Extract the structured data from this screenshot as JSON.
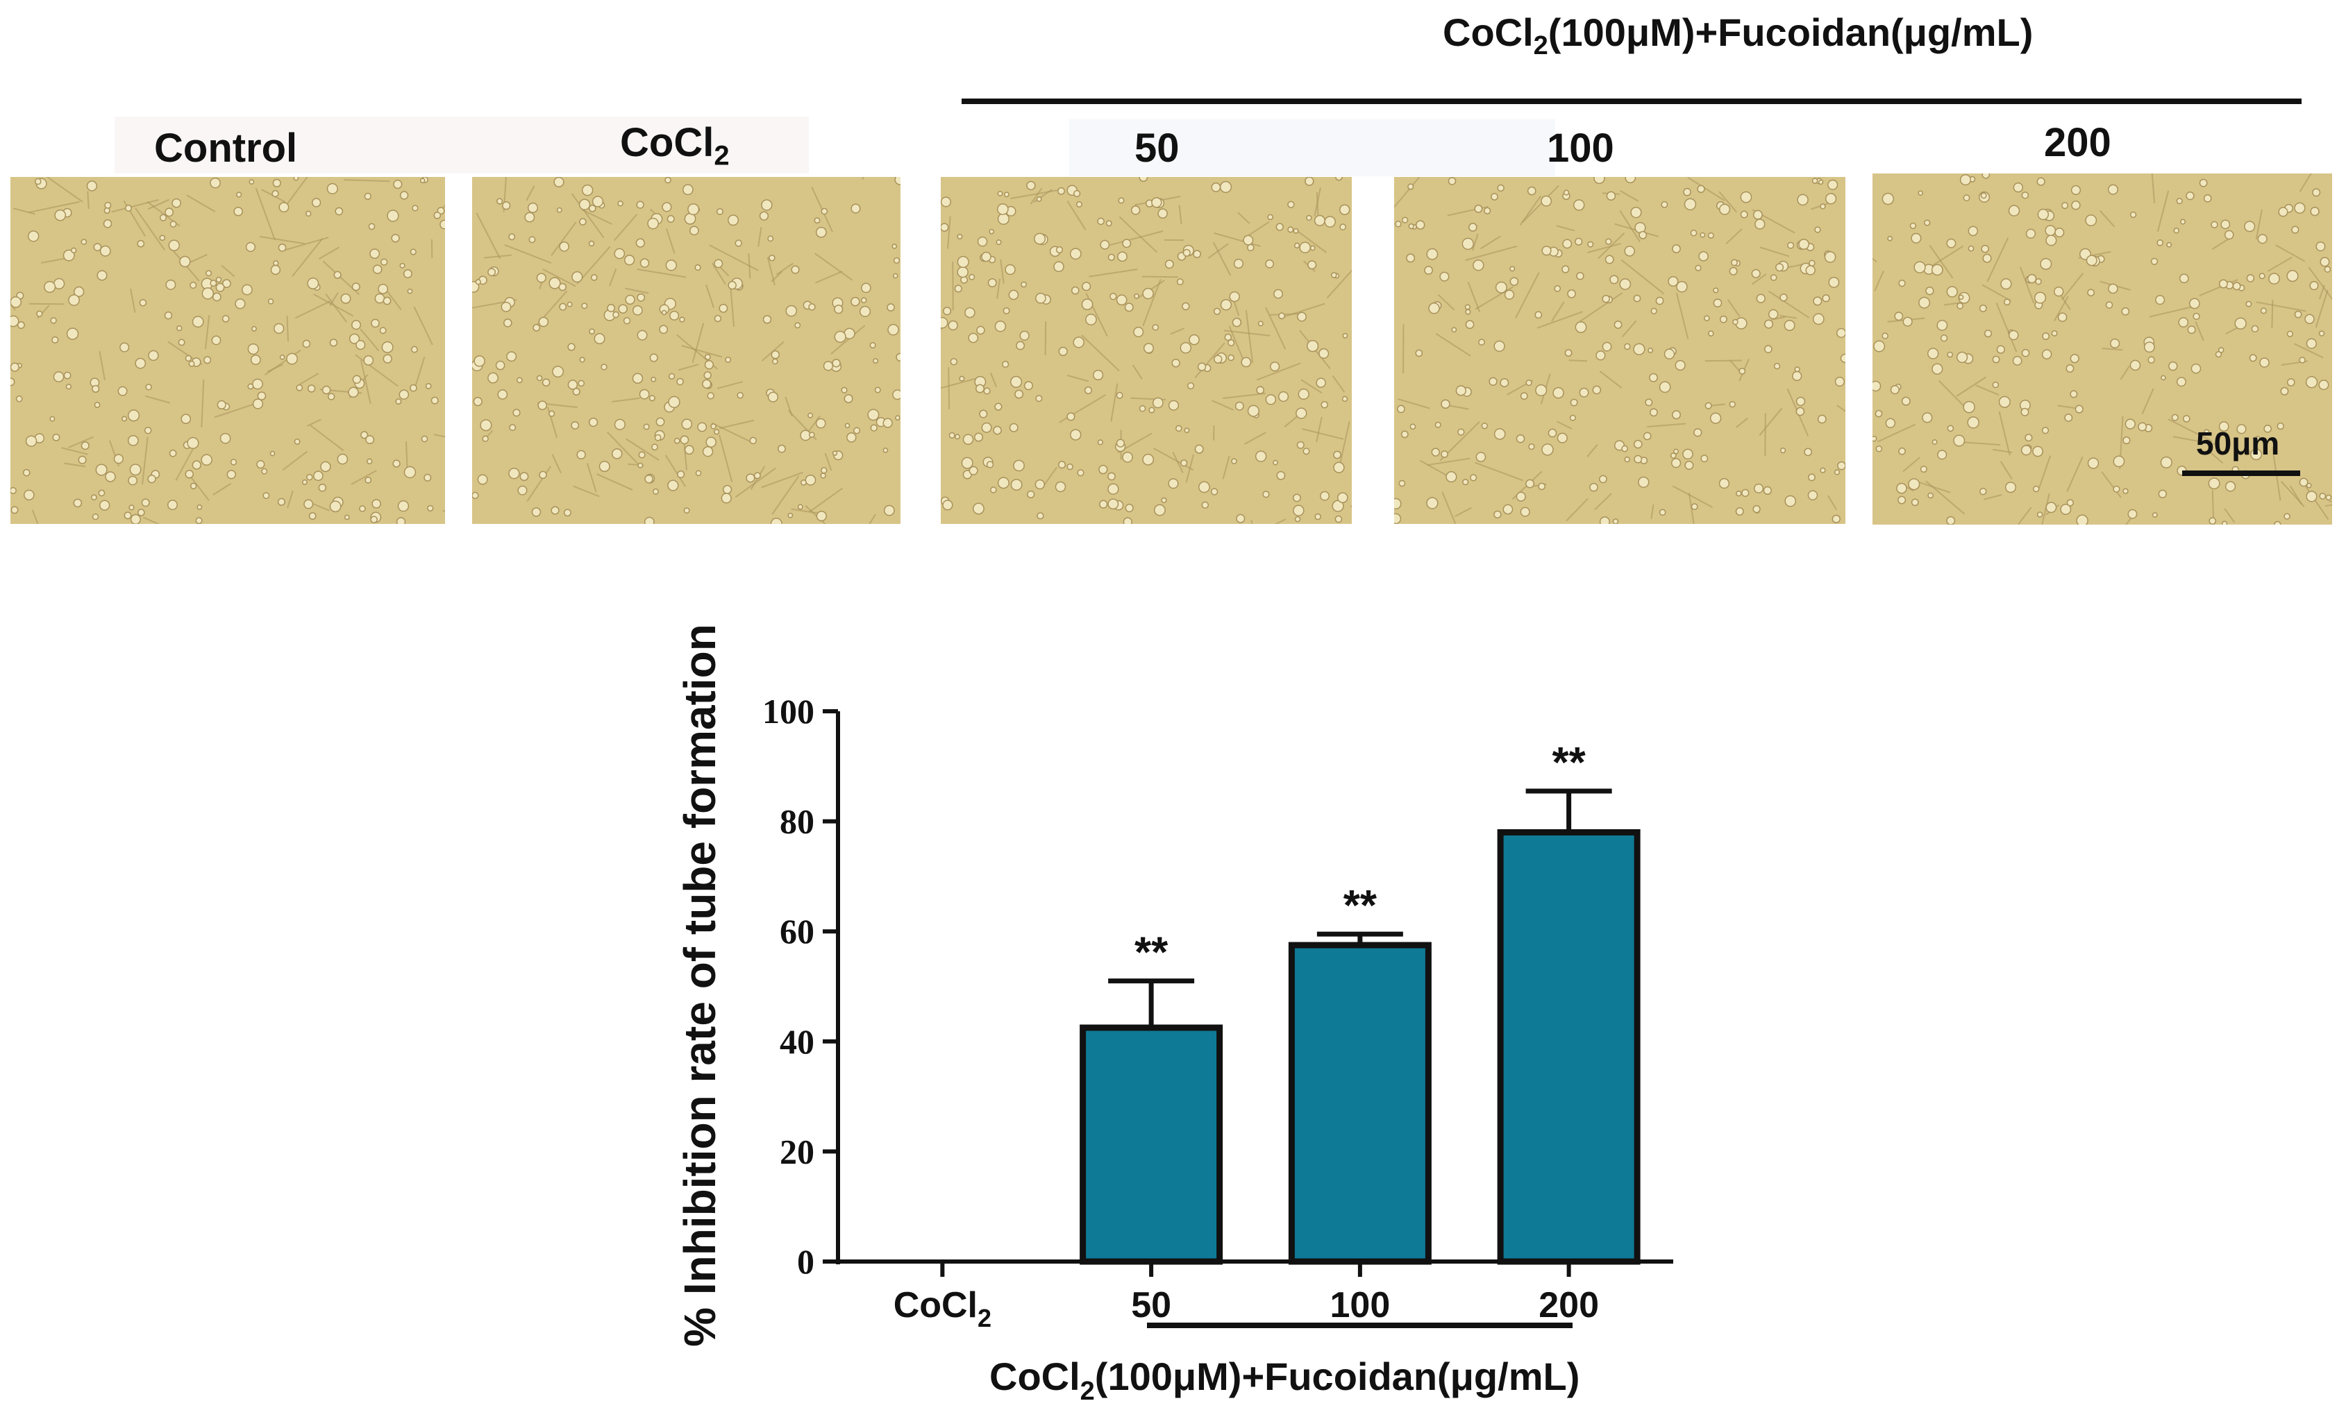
{
  "figure": {
    "top_group_label_prefix": "CoCl",
    "top_group_label_sub": "2",
    "top_group_label_suffix": "(100μM)+Fucoidan(μg/mL)",
    "panels": [
      {
        "label": "Control"
      },
      {
        "label_prefix": "CoCl",
        "label_sub": "2"
      },
      {
        "label": "50"
      },
      {
        "label": "100"
      },
      {
        "label": "200"
      }
    ],
    "scale_bar_label": "50μm",
    "colors": {
      "micrograph_bg": "#d7c487",
      "cell": "#f1e7bf",
      "cell_edge": "#a8925a"
    }
  },
  "chart_data": {
    "type": "bar",
    "categories": [
      "CoCl2",
      "50",
      "100",
      "200"
    ],
    "category_labels": [
      {
        "prefix": "CoCl",
        "sub": "2"
      },
      {
        "prefix": "50"
      },
      {
        "prefix": "100"
      },
      {
        "prefix": "200"
      }
    ],
    "values": [
      0,
      42.5,
      57.5,
      78
    ],
    "errors": [
      0,
      8.5,
      2,
      7.5
    ],
    "significance": [
      "",
      "**",
      "**",
      "**"
    ],
    "ylabel": "% Inhibition rate of tube formation",
    "ylim": [
      0,
      100
    ],
    "yticks": [
      "0",
      "20",
      "40",
      "60",
      "80",
      "100"
    ],
    "xgroup_label_prefix": "CoCl",
    "xgroup_label_sub": "2",
    "xgroup_label_suffix": "(100μM)+Fucoidan(μg/mL)",
    "bar_color": "#0e7a96",
    "edge_color": "#111111",
    "grid": false
  }
}
